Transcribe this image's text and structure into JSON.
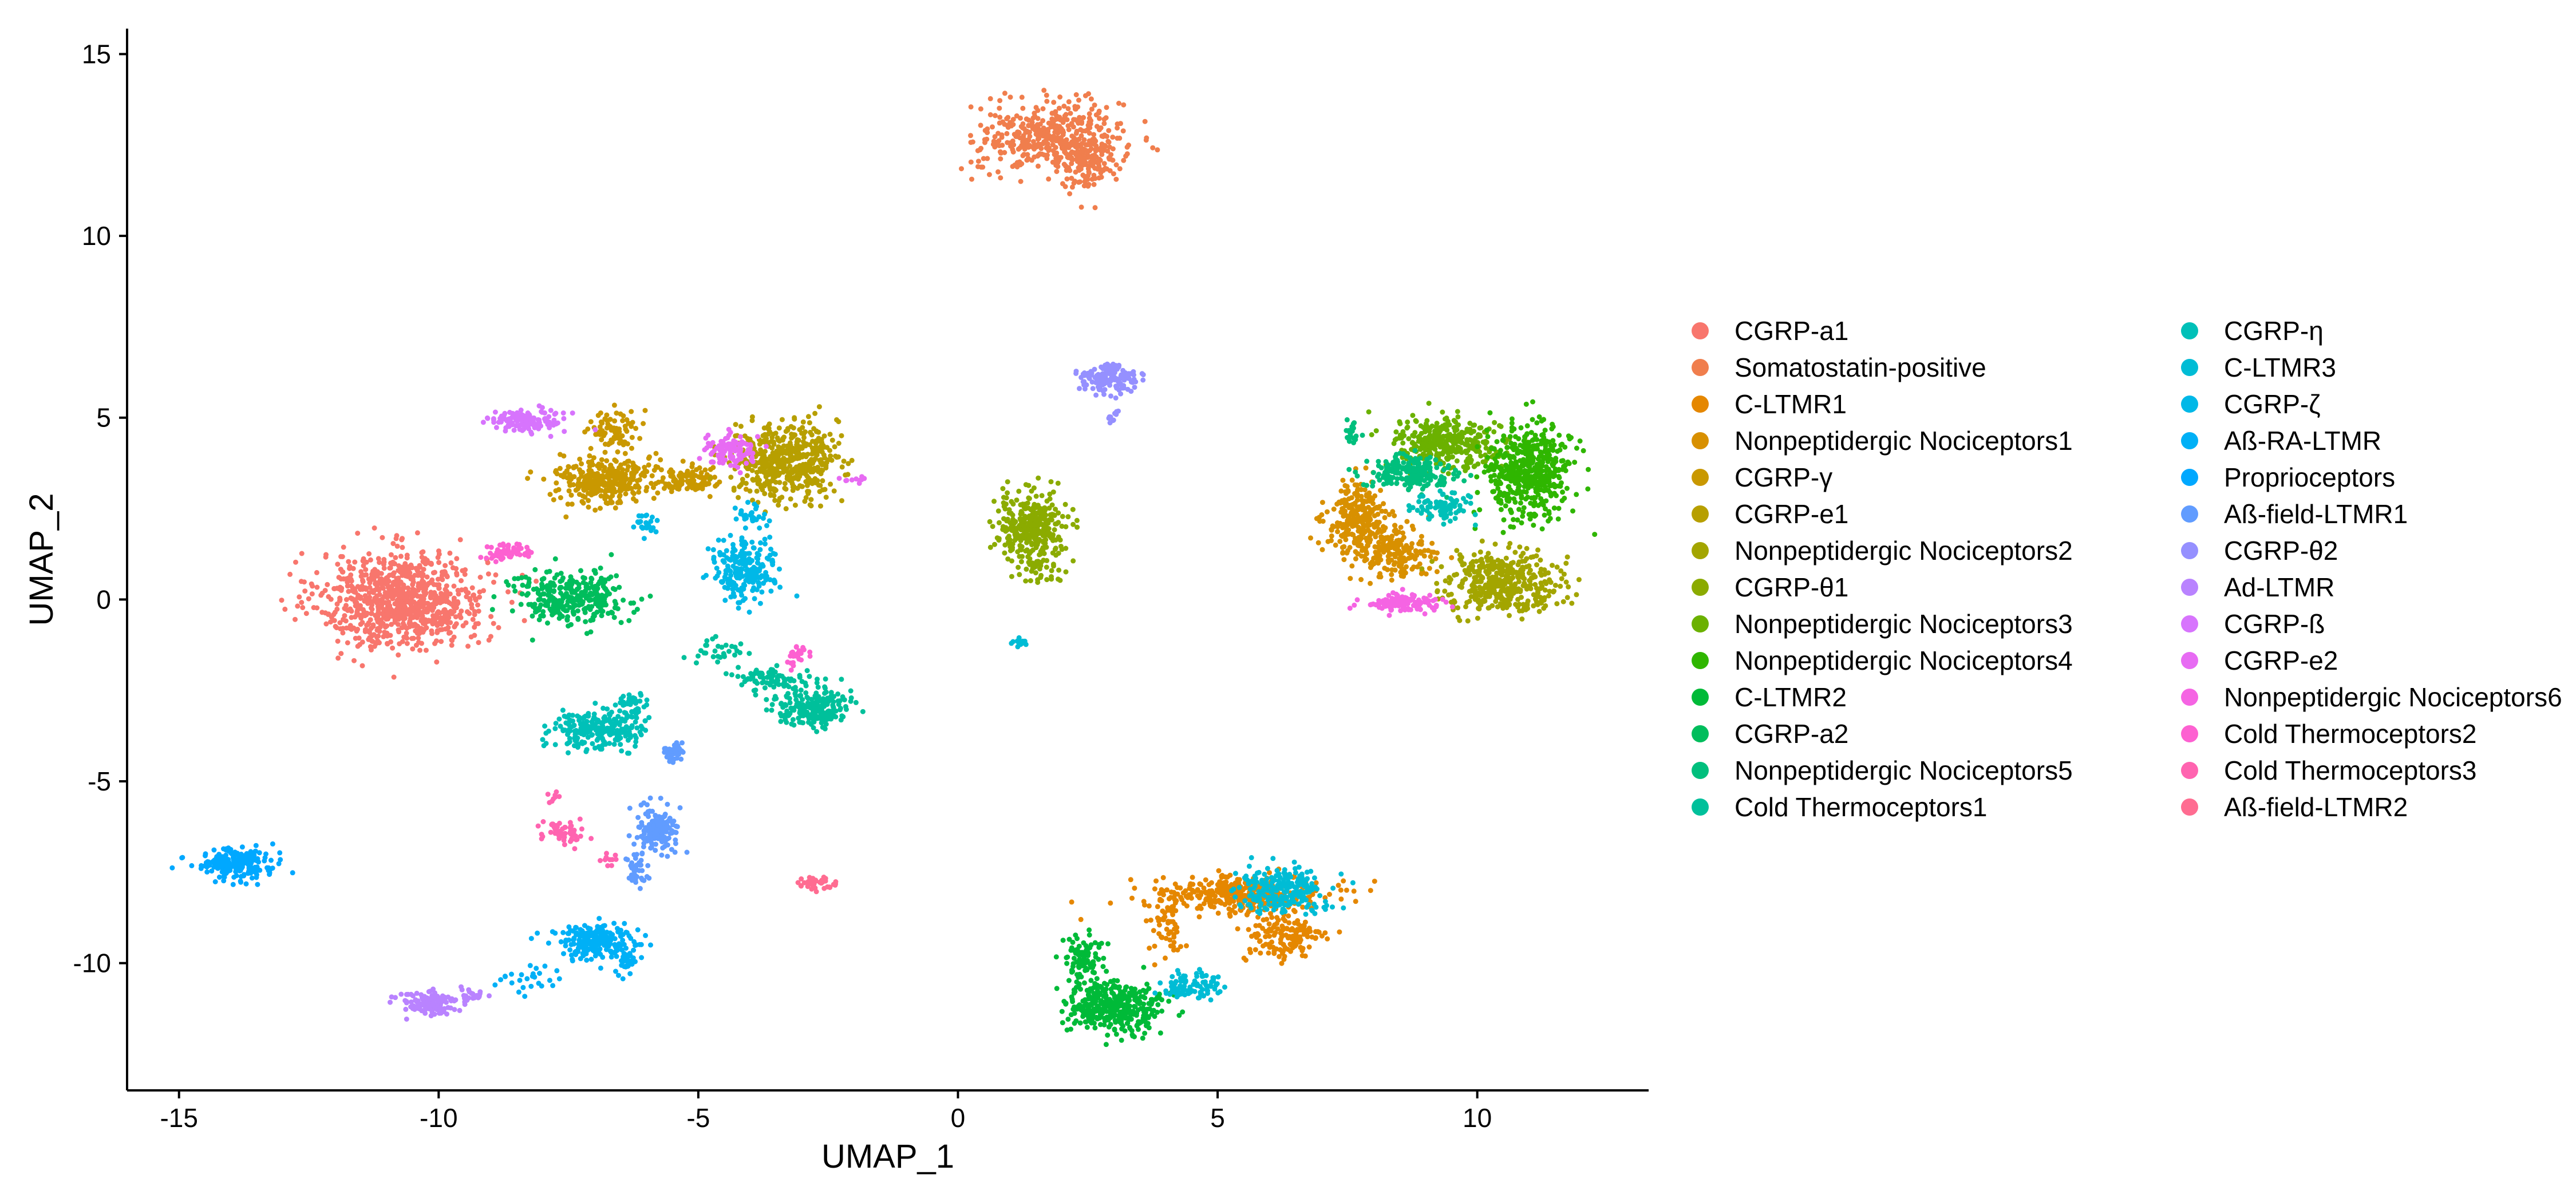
{
  "chart_data": {
    "type": "scatter",
    "title": "",
    "xlabel": "UMAP_1",
    "ylabel": "UMAP_2",
    "xlim": [
      -16,
      13.3
    ],
    "ylim": [
      -13.5,
      15.7
    ],
    "x_ticks": [
      -15,
      -10,
      -5,
      0,
      5,
      10
    ],
    "y_ticks": [
      -10,
      -5,
      0,
      5,
      10,
      15
    ],
    "grid": false,
    "legend_position": "right",
    "series": [
      {
        "name": "CGRP-a1",
        "color": "#F8766D",
        "clusters": [
          {
            "cx": -10.7,
            "cy": 0,
            "rx": 1.6,
            "ry": 1.3,
            "n": 900
          }
        ]
      },
      {
        "name": "Somatostatin-positive",
        "color": "#F07E4D",
        "clusters": [
          {
            "cx": 1.8,
            "cy": 12.7,
            "rx": 1.4,
            "ry": 1.0,
            "n": 420
          },
          {
            "cx": 2.5,
            "cy": 12.0,
            "rx": 0.5,
            "ry": 0.8,
            "n": 120
          }
        ]
      },
      {
        "name": "C-LTMR1",
        "color": "#E58700",
        "clusters": [
          {
            "cx": 5.5,
            "cy": -8.1,
            "rx": 1.6,
            "ry": 0.5,
            "n": 380
          },
          {
            "cx": 6.3,
            "cy": -9.3,
            "rx": 0.8,
            "ry": 0.7,
            "n": 140
          },
          {
            "cx": 4.0,
            "cy": -9.0,
            "rx": 0.3,
            "ry": 0.9,
            "n": 60
          }
        ]
      },
      {
        "name": "Nonpeptidergic Nociceptors1",
        "color": "#D89000",
        "clusters": [
          {
            "cx": 7.7,
            "cy": 2.2,
            "rx": 0.6,
            "ry": 1.0,
            "n": 260
          },
          {
            "cx": 8.4,
            "cy": 1.3,
            "rx": 0.7,
            "ry": 0.7,
            "n": 180
          }
        ]
      },
      {
        "name": "CGRP-γ",
        "color": "#C99800",
        "clusters": [
          {
            "cx": -6.8,
            "cy": 3.3,
            "rx": 0.9,
            "ry": 0.7,
            "n": 320
          },
          {
            "cx": -6.6,
            "cy": 4.7,
            "rx": 0.5,
            "ry": 0.5,
            "n": 80
          },
          {
            "cx": -5.2,
            "cy": 3.3,
            "rx": 0.6,
            "ry": 0.4,
            "n": 100
          }
        ]
      },
      {
        "name": "CGRP-e1",
        "color": "#B79F00",
        "clusters": [
          {
            "cx": -3.3,
            "cy": 3.8,
            "rx": 1.0,
            "ry": 1.0,
            "n": 520
          }
        ]
      },
      {
        "name": "Nonpeptidergic Nociceptors2",
        "color": "#A3A500",
        "clusters": [
          {
            "cx": 10.5,
            "cy": 0.5,
            "rx": 1.1,
            "ry": 0.8,
            "n": 420
          }
        ]
      },
      {
        "name": "CGRP-θ1",
        "color": "#8BAB00",
        "clusters": [
          {
            "cx": 1.4,
            "cy": 2.0,
            "rx": 0.7,
            "ry": 0.9,
            "n": 330
          },
          {
            "cx": 1.6,
            "cy": 0.8,
            "rx": 0.4,
            "ry": 0.4,
            "n": 40
          }
        ]
      },
      {
        "name": "Nonpeptidergic Nociceptors3",
        "color": "#6BB100",
        "clusters": [
          {
            "cx": 9.4,
            "cy": 4.3,
            "rx": 1.0,
            "ry": 0.7,
            "n": 340
          }
        ]
      },
      {
        "name": "Nonpeptidergic Nociceptors4",
        "color": "#2FB600",
        "clusters": [
          {
            "cx": 11.0,
            "cy": 3.5,
            "rx": 0.8,
            "ry": 1.3,
            "n": 480
          }
        ]
      },
      {
        "name": "C-LTMR2",
        "color": "#00BA38",
        "clusters": [
          {
            "cx": 3.0,
            "cy": -11.2,
            "rx": 0.9,
            "ry": 0.7,
            "n": 380
          },
          {
            "cx": 2.4,
            "cy": -9.9,
            "rx": 0.4,
            "ry": 0.7,
            "n": 90
          }
        ]
      },
      {
        "name": "CGRP-a2",
        "color": "#00BD5C",
        "clusters": [
          {
            "cx": -7.5,
            "cy": 0.0,
            "rx": 1.1,
            "ry": 0.7,
            "n": 320
          }
        ]
      },
      {
        "name": "Nonpeptidergic Nociceptors5",
        "color": "#00BF7D",
        "clusters": [
          {
            "cx": 8.7,
            "cy": 3.5,
            "rx": 0.8,
            "ry": 0.5,
            "n": 200
          },
          {
            "cx": 7.6,
            "cy": 4.6,
            "rx": 0.2,
            "ry": 0.3,
            "n": 20
          }
        ]
      },
      {
        "name": "Cold Thermoceptors1",
        "color": "#00C09B",
        "clusters": [
          {
            "cx": -2.8,
            "cy": -3.0,
            "rx": 0.7,
            "ry": 0.5,
            "n": 220
          },
          {
            "cx": -3.7,
            "cy": -2.2,
            "rx": 0.8,
            "ry": 0.35,
            "n": 80
          },
          {
            "cx": -4.6,
            "cy": -1.4,
            "rx": 0.6,
            "ry": 0.25,
            "n": 30
          }
        ]
      },
      {
        "name": "CGRP-η",
        "color": "#00C0B8",
        "clusters": [
          {
            "cx": -6.9,
            "cy": -3.6,
            "rx": 0.9,
            "ry": 0.5,
            "n": 230
          },
          {
            "cx": -6.3,
            "cy": -2.9,
            "rx": 0.3,
            "ry": 0.4,
            "n": 40
          },
          {
            "cx": 9.3,
            "cy": 2.6,
            "rx": 0.6,
            "ry": 0.4,
            "n": 80
          }
        ]
      },
      {
        "name": "C-LTMR3",
        "color": "#00BCD5",
        "clusters": [
          {
            "cx": 6.2,
            "cy": -8.0,
            "rx": 0.9,
            "ry": 0.6,
            "n": 230
          },
          {
            "cx": 4.5,
            "cy": -10.6,
            "rx": 0.6,
            "ry": 0.35,
            "n": 90
          },
          {
            "cx": 1.2,
            "cy": -1.2,
            "rx": 0.15,
            "ry": 0.1,
            "n": 15
          }
        ]
      },
      {
        "name": "CGRP-ζ",
        "color": "#00B8E7",
        "clusters": [
          {
            "cx": -4.1,
            "cy": 0.8,
            "rx": 0.6,
            "ry": 0.8,
            "n": 220
          },
          {
            "cx": -4.0,
            "cy": 2.3,
            "rx": 0.3,
            "ry": 0.3,
            "n": 30
          },
          {
            "cx": -6.0,
            "cy": 2.1,
            "rx": 0.2,
            "ry": 0.3,
            "n": 25
          }
        ]
      },
      {
        "name": "Aß-RA-LTMR",
        "color": "#00B0F6",
        "clusters": [
          {
            "cx": -7.0,
            "cy": -9.4,
            "rx": 0.8,
            "ry": 0.5,
            "n": 220
          },
          {
            "cx": -6.4,
            "cy": -10.0,
            "rx": 0.2,
            "ry": 0.3,
            "n": 30
          },
          {
            "cx": -8.2,
            "cy": -10.4,
            "rx": 0.7,
            "ry": 0.4,
            "n": 25
          }
        ]
      },
      {
        "name": "Proprioceptors",
        "color": "#00A8FF",
        "clusters": [
          {
            "cx": -13.9,
            "cy": -7.3,
            "rx": 0.7,
            "ry": 0.45,
            "n": 230
          }
        ]
      },
      {
        "name": "Aß-field-LTMR1",
        "color": "#619CFF",
        "clusters": [
          {
            "cx": -5.8,
            "cy": -6.3,
            "rx": 0.4,
            "ry": 0.6,
            "n": 140
          },
          {
            "cx": -5.5,
            "cy": -4.2,
            "rx": 0.2,
            "ry": 0.3,
            "n": 40
          },
          {
            "cx": -6.2,
            "cy": -7.4,
            "rx": 0.2,
            "ry": 0.5,
            "n": 40
          }
        ]
      },
      {
        "name": "CGRP-θ2",
        "color": "#9590FF",
        "clusters": [
          {
            "cx": 2.9,
            "cy": 6.1,
            "rx": 0.6,
            "ry": 0.4,
            "n": 150
          },
          {
            "cx": 3.0,
            "cy": 5.2,
            "rx": 0.15,
            "ry": 0.4,
            "n": 10
          }
        ]
      },
      {
        "name": "Ad-LTMR",
        "color": "#B983FF",
        "clusters": [
          {
            "cx": -10.2,
            "cy": -11.1,
            "rx": 0.6,
            "ry": 0.3,
            "n": 140
          },
          {
            "cx": -9.4,
            "cy": -10.9,
            "rx": 0.3,
            "ry": 0.2,
            "n": 20
          }
        ]
      },
      {
        "name": "CGRP-ß",
        "color": "#D774FD",
        "clusters": [
          {
            "cx": -8.3,
            "cy": 4.9,
            "rx": 0.7,
            "ry": 0.3,
            "n": 140
          }
        ]
      },
      {
        "name": "CGRP-e2",
        "color": "#E76BF3",
        "clusters": [
          {
            "cx": -4.4,
            "cy": 4.1,
            "rx": 0.5,
            "ry": 0.45,
            "n": 120
          },
          {
            "cx": -2.0,
            "cy": 3.3,
            "rx": 0.2,
            "ry": 0.1,
            "n": 10
          }
        ]
      },
      {
        "name": "Nonpeptidergic Nociceptors6",
        "color": "#F564E3",
        "clusters": [
          {
            "cx": 8.5,
            "cy": -0.1,
            "rx": 0.7,
            "ry": 0.25,
            "n": 120
          }
        ]
      },
      {
        "name": "Cold Thermoceptors2",
        "color": "#FD61D1",
        "clusters": [
          {
            "cx": -8.7,
            "cy": 1.3,
            "rx": 0.4,
            "ry": 0.25,
            "n": 70
          },
          {
            "cx": -3.1,
            "cy": -1.5,
            "rx": 0.2,
            "ry": 0.3,
            "n": 25
          }
        ]
      },
      {
        "name": "Cold Thermoceptors3",
        "color": "#FF64B0",
        "clusters": [
          {
            "cx": -7.6,
            "cy": -6.4,
            "rx": 0.5,
            "ry": 0.4,
            "n": 60
          },
          {
            "cx": -7.8,
            "cy": -5.5,
            "rx": 0.1,
            "ry": 0.2,
            "n": 8
          },
          {
            "cx": -6.7,
            "cy": -7.2,
            "rx": 0.15,
            "ry": 0.3,
            "n": 10
          }
        ]
      },
      {
        "name": "Aß-field-LTMR2",
        "color": "#FF6C91",
        "clusters": [
          {
            "cx": -2.7,
            "cy": -7.8,
            "rx": 0.4,
            "ry": 0.18,
            "n": 40
          }
        ]
      }
    ]
  }
}
